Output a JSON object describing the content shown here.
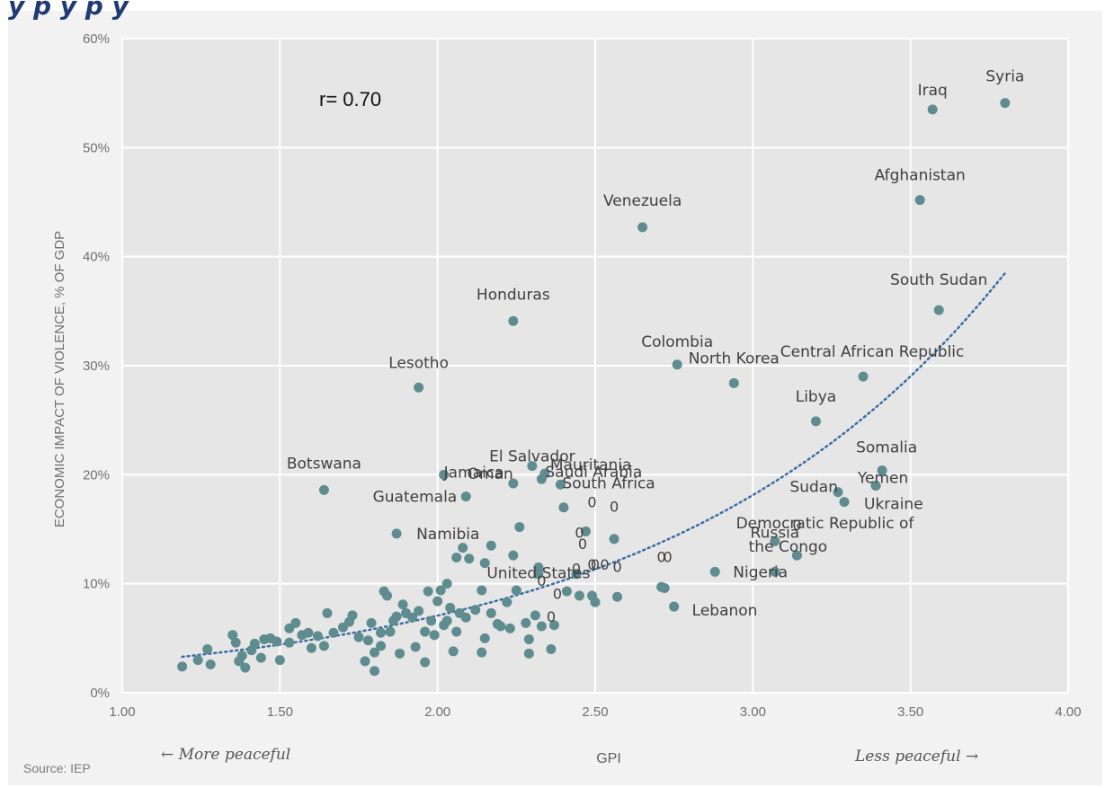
{
  "page": {
    "title_partial": "y         p     y         p     y"
  },
  "chart_data": {
    "type": "scatter",
    "title": "",
    "xlabel": "GPI",
    "ylabel": "ECONOMIC IMPACT OF VIOLENCE, % OF GDP",
    "xlim": [
      1.0,
      4.0
    ],
    "ylim": [
      0,
      60
    ],
    "x_ticks": [
      "1.00",
      "1.50",
      "2.00",
      "2.50",
      "3.00",
      "3.50",
      "4.00"
    ],
    "y_ticks": [
      "0%",
      "10%",
      "20%",
      "30%",
      "40%",
      "50%",
      "60%"
    ],
    "grid": true,
    "legend": "none",
    "annotation_r": "r= 0.70",
    "left_note": "← More peaceful",
    "right_note": "Less peaceful →",
    "source": "Source: IEP",
    "point_color": "#5f8c8e",
    "trend_color": "#3a6ea5",
    "trendline": {
      "style": "dotted exponential",
      "x_start": 1.19,
      "x_end": 3.8,
      "y_start": 3.3,
      "y_end": 38.5
    },
    "labeled_points": [
      {
        "name": "Syria",
        "x": 3.8,
        "y": 54.1
      },
      {
        "name": "Iraq",
        "x": 3.57,
        "y": 53.5
      },
      {
        "name": "Afghanistan",
        "x": 3.53,
        "y": 45.2
      },
      {
        "name": "Venezuela",
        "x": 2.65,
        "y": 42.7
      },
      {
        "name": "South Sudan",
        "x": 3.59,
        "y": 35.1
      },
      {
        "name": "Honduras",
        "x": 2.24,
        "y": 34.1
      },
      {
        "name": "Colombia",
        "x": 2.76,
        "y": 30.1
      },
      {
        "name": "Central African Republic",
        "x": 3.35,
        "y": 29.0
      },
      {
        "name": "North Korea",
        "x": 2.94,
        "y": 28.4
      },
      {
        "name": "Lesotho",
        "x": 1.94,
        "y": 28.0
      },
      {
        "name": "Libya",
        "x": 3.2,
        "y": 24.9
      },
      {
        "name": "El Salvador",
        "x": 2.3,
        "y": 20.8
      },
      {
        "name": "Somalia",
        "x": 3.41,
        "y": 20.4
      },
      {
        "name": "Mauritania",
        "x": 2.34,
        "y": 20.1
      },
      {
        "name": "Jamaica",
        "x": 2.02,
        "y": 20.0
      },
      {
        "name": "Saudi Arabia",
        "x": 2.33,
        "y": 19.6
      },
      {
        "name": "Oman",
        "x": 2.24,
        "y": 19.2
      },
      {
        "name": "Yemen",
        "x": 3.39,
        "y": 19.0
      },
      {
        "name": "South Africa",
        "x": 2.39,
        "y": 19.1
      },
      {
        "name": "Botswana",
        "x": 1.64,
        "y": 18.6
      },
      {
        "name": "Sudan",
        "x": 3.27,
        "y": 18.4
      },
      {
        "name": "Guatemala",
        "x": 2.09,
        "y": 18.0
      },
      {
        "name": "Ukraine",
        "x": 3.29,
        "y": 17.5
      },
      {
        "name": "Namibia",
        "x": 1.87,
        "y": 14.6
      },
      {
        "name": "Russia",
        "x": 3.07,
        "y": 13.9
      },
      {
        "name": "Democratic Republic of the Congo",
        "x": 3.14,
        "y": 12.6
      },
      {
        "name": "United States",
        "x": 2.32,
        "y": 10.9
      },
      {
        "name": "Nigeria",
        "x": 2.88,
        "y": 11.1
      },
      {
        "name": "Lebanon",
        "x": 2.75,
        "y": 7.9
      }
    ],
    "unlabeled_points": [
      [
        1.19,
        2.4
      ],
      [
        1.24,
        3.0
      ],
      [
        1.27,
        4.0
      ],
      [
        1.28,
        2.6
      ],
      [
        1.35,
        5.3
      ],
      [
        1.36,
        4.6
      ],
      [
        1.37,
        2.9
      ],
      [
        1.38,
        3.4
      ],
      [
        1.39,
        2.3
      ],
      [
        1.41,
        3.9
      ],
      [
        1.42,
        4.5
      ],
      [
        1.44,
        3.2
      ],
      [
        1.45,
        4.9
      ],
      [
        1.47,
        5.0
      ],
      [
        1.49,
        4.7
      ],
      [
        1.5,
        3.0
      ],
      [
        1.53,
        4.6
      ],
      [
        1.53,
        5.9
      ],
      [
        1.55,
        6.4
      ],
      [
        1.57,
        5.3
      ],
      [
        1.59,
        5.5
      ],
      [
        1.6,
        4.1
      ],
      [
        1.62,
        5.2
      ],
      [
        1.64,
        4.3
      ],
      [
        1.65,
        7.3
      ],
      [
        1.67,
        5.5
      ],
      [
        1.7,
        6.0
      ],
      [
        1.72,
        6.5
      ],
      [
        1.73,
        7.1
      ],
      [
        1.75,
        5.1
      ],
      [
        1.77,
        2.9
      ],
      [
        1.78,
        4.8
      ],
      [
        1.79,
        6.4
      ],
      [
        1.8,
        3.7
      ],
      [
        1.8,
        2.0
      ],
      [
        1.82,
        4.3
      ],
      [
        1.82,
        5.5
      ],
      [
        1.83,
        9.3
      ],
      [
        1.84,
        8.9
      ],
      [
        1.85,
        5.6
      ],
      [
        1.86,
        6.6
      ],
      [
        1.87,
        7.0
      ],
      [
        1.88,
        3.6
      ],
      [
        1.89,
        8.1
      ],
      [
        1.9,
        7.3
      ],
      [
        1.92,
        6.9
      ],
      [
        1.93,
        4.2
      ],
      [
        1.94,
        7.5
      ],
      [
        1.96,
        5.6
      ],
      [
        1.96,
        2.8
      ],
      [
        1.97,
        9.3
      ],
      [
        1.98,
        6.6
      ],
      [
        1.99,
        5.3
      ],
      [
        2.0,
        8.4
      ],
      [
        2.01,
        9.4
      ],
      [
        2.02,
        6.2
      ],
      [
        2.03,
        10.0
      ],
      [
        2.03,
        6.6
      ],
      [
        2.04,
        7.8
      ],
      [
        2.05,
        3.8
      ],
      [
        2.06,
        5.6
      ],
      [
        2.06,
        12.4
      ],
      [
        2.07,
        7.3
      ],
      [
        2.08,
        13.3
      ],
      [
        2.09,
        6.9
      ],
      [
        2.1,
        12.3
      ],
      [
        2.12,
        7.6
      ],
      [
        2.14,
        9.4
      ],
      [
        2.14,
        3.7
      ],
      [
        2.15,
        11.9
      ],
      [
        2.15,
        5.0
      ],
      [
        2.17,
        7.3
      ],
      [
        2.17,
        13.5
      ],
      [
        2.19,
        6.3
      ],
      [
        2.2,
        6.1
      ],
      [
        2.22,
        8.3
      ],
      [
        2.23,
        5.9
      ],
      [
        2.24,
        12.6
      ],
      [
        2.25,
        9.4
      ],
      [
        2.26,
        15.2
      ],
      [
        2.28,
        6.4
      ],
      [
        2.29,
        4.9
      ],
      [
        2.29,
        3.6
      ],
      [
        2.31,
        7.1
      ],
      [
        2.32,
        11.5
      ],
      [
        2.33,
        6.1
      ],
      [
        2.36,
        4.0
      ],
      [
        2.37,
        6.2
      ],
      [
        2.4,
        17.0
      ],
      [
        2.41,
        9.3
      ],
      [
        2.44,
        10.9
      ],
      [
        2.45,
        8.9
      ],
      [
        2.47,
        14.8
      ],
      [
        2.49,
        8.9
      ],
      [
        2.5,
        8.3
      ],
      [
        2.56,
        14.1
      ],
      [
        2.57,
        8.8
      ],
      [
        2.71,
        9.7
      ],
      [
        2.72,
        9.6
      ],
      [
        2.75,
        7.9
      ],
      [
        3.14,
        12.6
      ],
      [
        3.07,
        11.1
      ],
      [
        3.39,
        19.0
      ]
    ],
    "zero_marks": [
      [
        2.49,
        17.0
      ],
      [
        2.56,
        16.6
      ],
      [
        2.46,
        13.2
      ],
      [
        2.45,
        14.2
      ],
      [
        2.5,
        11.3
      ],
      [
        2.57,
        11.1
      ],
      [
        2.73,
        12.0
      ],
      [
        2.71,
        12.0
      ],
      [
        2.49,
        11.3
      ],
      [
        2.53,
        11.3
      ],
      [
        2.44,
        10.9
      ],
      [
        2.33,
        9.8
      ],
      [
        2.38,
        8.6
      ],
      [
        2.36,
        6.5
      ],
      [
        3.14,
        14.9
      ]
    ]
  }
}
